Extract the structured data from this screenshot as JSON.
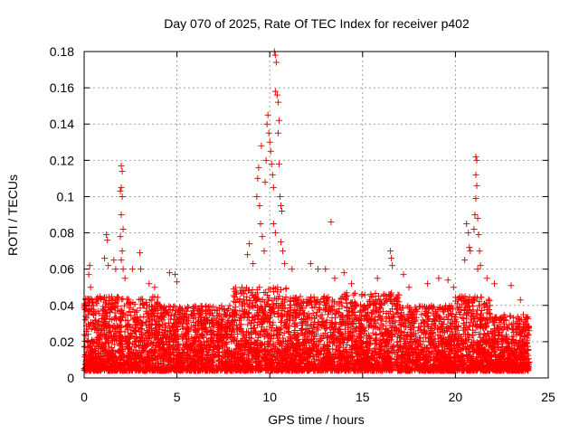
{
  "chart_data": {
    "type": "scatter",
    "title": "Day 070 of 2025, Rate Of TEC Index for receiver p402",
    "xlabel": "GPS time / hours",
    "ylabel": "ROTI / TECUs",
    "xlim": [
      0,
      25
    ],
    "ylim": [
      0,
      0.18
    ],
    "x_ticks": [
      "0",
      "5",
      "10",
      "15",
      "20",
      "25"
    ],
    "y_ticks": [
      "0",
      "0.02",
      "0.04",
      "0.06",
      "0.08",
      "0.1",
      "0.12",
      "0.14",
      "0.16",
      "0.18"
    ],
    "grid": true,
    "marker": "+",
    "color": "#ff0000",
    "baseline_ranges": [
      {
        "x_from": 0.0,
        "x_to": 1.0,
        "y_min": 0.004,
        "y_max": 0.045
      },
      {
        "x_from": 1.0,
        "x_to": 4.0,
        "y_min": 0.004,
        "y_max": 0.045
      },
      {
        "x_from": 4.0,
        "x_to": 8.0,
        "y_min": 0.004,
        "y_max": 0.04
      },
      {
        "x_from": 8.0,
        "x_to": 11.0,
        "y_min": 0.004,
        "y_max": 0.05
      },
      {
        "x_from": 11.0,
        "x_to": 14.0,
        "y_min": 0.004,
        "y_max": 0.045
      },
      {
        "x_from": 14.0,
        "x_to": 17.0,
        "y_min": 0.004,
        "y_max": 0.047
      },
      {
        "x_from": 17.0,
        "x_to": 20.0,
        "y_min": 0.004,
        "y_max": 0.04
      },
      {
        "x_from": 20.0,
        "x_to": 22.0,
        "y_min": 0.004,
        "y_max": 0.045
      },
      {
        "x_from": 22.0,
        "x_to": 24.0,
        "y_min": 0.004,
        "y_max": 0.035
      }
    ],
    "points": [
      {
        "x": 0.3,
        "y": 0.062
      },
      {
        "x": 0.25,
        "y": 0.057
      },
      {
        "x": 0.35,
        "y": 0.05
      },
      {
        "x": 1.2,
        "y": 0.079
      },
      {
        "x": 1.25,
        "y": 0.076
      },
      {
        "x": 1.1,
        "y": 0.066
      },
      {
        "x": 1.3,
        "y": 0.062
      },
      {
        "x": 1.6,
        "y": 0.065
      },
      {
        "x": 1.7,
        "y": 0.06
      },
      {
        "x": 2.0,
        "y": 0.117
      },
      {
        "x": 2.05,
        "y": 0.114
      },
      {
        "x": 2.0,
        "y": 0.105
      },
      {
        "x": 1.95,
        "y": 0.103
      },
      {
        "x": 2.05,
        "y": 0.1
      },
      {
        "x": 2.0,
        "y": 0.09
      },
      {
        "x": 2.1,
        "y": 0.082
      },
      {
        "x": 1.95,
        "y": 0.078
      },
      {
        "x": 2.05,
        "y": 0.07
      },
      {
        "x": 2.0,
        "y": 0.065
      },
      {
        "x": 2.1,
        "y": 0.06
      },
      {
        "x": 2.2,
        "y": 0.055
      },
      {
        "x": 2.6,
        "y": 0.06
      },
      {
        "x": 3.0,
        "y": 0.069
      },
      {
        "x": 3.05,
        "y": 0.06
      },
      {
        "x": 3.5,
        "y": 0.052
      },
      {
        "x": 3.8,
        "y": 0.05
      },
      {
        "x": 4.6,
        "y": 0.058
      },
      {
        "x": 4.9,
        "y": 0.057
      },
      {
        "x": 5.0,
        "y": 0.053
      },
      {
        "x": 8.8,
        "y": 0.068
      },
      {
        "x": 8.9,
        "y": 0.074
      },
      {
        "x": 9.1,
        "y": 0.063
      },
      {
        "x": 9.3,
        "y": 0.1
      },
      {
        "x": 9.35,
        "y": 0.11
      },
      {
        "x": 9.4,
        "y": 0.116
      },
      {
        "x": 9.45,
        "y": 0.095
      },
      {
        "x": 9.5,
        "y": 0.085
      },
      {
        "x": 9.55,
        "y": 0.128
      },
      {
        "x": 9.6,
        "y": 0.078
      },
      {
        "x": 9.7,
        "y": 0.07
      },
      {
        "x": 9.8,
        "y": 0.12
      },
      {
        "x": 9.85,
        "y": 0.14
      },
      {
        "x": 9.9,
        "y": 0.145
      },
      {
        "x": 9.95,
        "y": 0.135
      },
      {
        "x": 10.0,
        "y": 0.13
      },
      {
        "x": 10.05,
        "y": 0.125
      },
      {
        "x": 9.75,
        "y": 0.108
      },
      {
        "x": 10.1,
        "y": 0.118
      },
      {
        "x": 10.15,
        "y": 0.112
      },
      {
        "x": 10.2,
        "y": 0.105
      },
      {
        "x": 10.25,
        "y": 0.18
      },
      {
        "x": 10.3,
        "y": 0.178
      },
      {
        "x": 10.35,
        "y": 0.174
      },
      {
        "x": 10.3,
        "y": 0.158
      },
      {
        "x": 10.4,
        "y": 0.156
      },
      {
        "x": 10.45,
        "y": 0.152
      },
      {
        "x": 10.5,
        "y": 0.142
      },
      {
        "x": 10.45,
        "y": 0.135
      },
      {
        "x": 10.5,
        "y": 0.118
      },
      {
        "x": 10.55,
        "y": 0.1
      },
      {
        "x": 10.6,
        "y": 0.095
      },
      {
        "x": 10.65,
        "y": 0.092
      },
      {
        "x": 10.2,
        "y": 0.085
      },
      {
        "x": 10.3,
        "y": 0.08
      },
      {
        "x": 10.6,
        "y": 0.075
      },
      {
        "x": 10.7,
        "y": 0.07
      },
      {
        "x": 10.8,
        "y": 0.063
      },
      {
        "x": 11.2,
        "y": 0.06
      },
      {
        "x": 12.2,
        "y": 0.063
      },
      {
        "x": 12.6,
        "y": 0.06
      },
      {
        "x": 13.3,
        "y": 0.086
      },
      {
        "x": 13.0,
        "y": 0.06
      },
      {
        "x": 13.5,
        "y": 0.055
      },
      {
        "x": 14.0,
        "y": 0.058
      },
      {
        "x": 14.4,
        "y": 0.052
      },
      {
        "x": 15.8,
        "y": 0.055
      },
      {
        "x": 16.5,
        "y": 0.07
      },
      {
        "x": 16.55,
        "y": 0.066
      },
      {
        "x": 16.6,
        "y": 0.062
      },
      {
        "x": 17.2,
        "y": 0.057
      },
      {
        "x": 17.5,
        "y": 0.05
      },
      {
        "x": 18.5,
        "y": 0.052
      },
      {
        "x": 19.1,
        "y": 0.055
      },
      {
        "x": 19.6,
        "y": 0.054
      },
      {
        "x": 19.9,
        "y": 0.05
      },
      {
        "x": 20.5,
        "y": 0.065
      },
      {
        "x": 20.6,
        "y": 0.085
      },
      {
        "x": 20.7,
        "y": 0.08
      },
      {
        "x": 20.75,
        "y": 0.072
      },
      {
        "x": 20.8,
        "y": 0.07
      },
      {
        "x": 21.0,
        "y": 0.082
      },
      {
        "x": 21.1,
        "y": 0.122
      },
      {
        "x": 21.15,
        "y": 0.12
      },
      {
        "x": 21.1,
        "y": 0.112
      },
      {
        "x": 21.15,
        "y": 0.106
      },
      {
        "x": 21.1,
        "y": 0.099
      },
      {
        "x": 21.05,
        "y": 0.09
      },
      {
        "x": 21.2,
        "y": 0.088
      },
      {
        "x": 21.25,
        "y": 0.079
      },
      {
        "x": 21.3,
        "y": 0.07
      },
      {
        "x": 21.35,
        "y": 0.062
      },
      {
        "x": 21.2,
        "y": 0.06
      },
      {
        "x": 21.7,
        "y": 0.055
      },
      {
        "x": 22.1,
        "y": 0.052
      },
      {
        "x": 23.0,
        "y": 0.051
      },
      {
        "x": 23.5,
        "y": 0.043
      }
    ]
  }
}
